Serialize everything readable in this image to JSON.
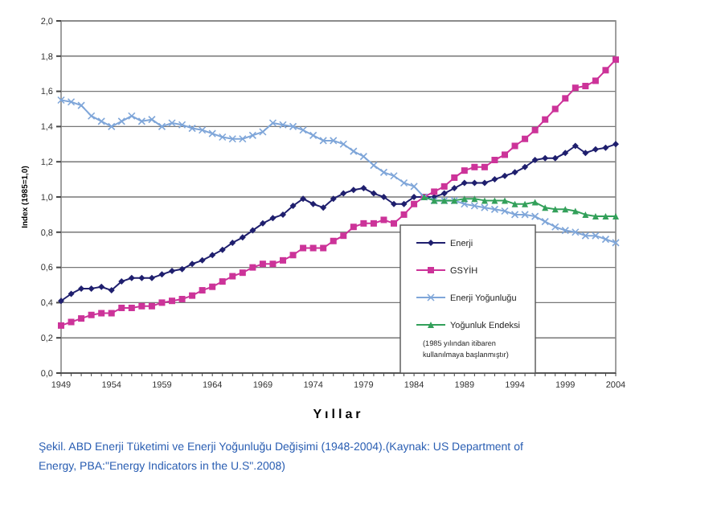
{
  "chart_data": {
    "type": "line",
    "xlabel": "Yıllar",
    "ylabel": "Index (1985=1,0)",
    "x": [
      1949,
      1950,
      1951,
      1952,
      1953,
      1954,
      1955,
      1956,
      1957,
      1958,
      1959,
      1960,
      1961,
      1962,
      1963,
      1964,
      1965,
      1966,
      1967,
      1968,
      1969,
      1970,
      1971,
      1972,
      1973,
      1974,
      1975,
      1976,
      1977,
      1978,
      1979,
      1980,
      1981,
      1982,
      1983,
      1984,
      1985,
      1986,
      1987,
      1988,
      1989,
      1990,
      1991,
      1992,
      1993,
      1994,
      1995,
      1996,
      1997,
      1998,
      1999,
      2000,
      2001,
      2002,
      2003,
      2004
    ],
    "series": [
      {
        "name": "Enerji",
        "color": "#1f1f6e",
        "marker": "diamond",
        "values": [
          0.41,
          0.45,
          0.48,
          0.48,
          0.49,
          0.47,
          0.52,
          0.54,
          0.54,
          0.54,
          0.56,
          0.58,
          0.59,
          0.62,
          0.64,
          0.67,
          0.7,
          0.74,
          0.77,
          0.81,
          0.85,
          0.88,
          0.9,
          0.95,
          0.99,
          0.96,
          0.94,
          0.99,
          1.02,
          1.04,
          1.05,
          1.02,
          1.0,
          0.96,
          0.96,
          1.0,
          1.0,
          1.0,
          1.02,
          1.05,
          1.08,
          1.08,
          1.08,
          1.1,
          1.12,
          1.14,
          1.17,
          1.21,
          1.22,
          1.22,
          1.25,
          1.29,
          1.25,
          1.27,
          1.28,
          1.3
        ]
      },
      {
        "name": "GSYİH",
        "color": "#cc3399",
        "marker": "square",
        "values": [
          0.27,
          0.29,
          0.31,
          0.33,
          0.34,
          0.34,
          0.37,
          0.37,
          0.38,
          0.38,
          0.4,
          0.41,
          0.42,
          0.44,
          0.47,
          0.49,
          0.52,
          0.55,
          0.57,
          0.6,
          0.62,
          0.62,
          0.64,
          0.67,
          0.71,
          0.71,
          0.71,
          0.75,
          0.78,
          0.83,
          0.85,
          0.85,
          0.87,
          0.85,
          0.9,
          0.96,
          1.0,
          1.03,
          1.06,
          1.11,
          1.15,
          1.17,
          1.17,
          1.21,
          1.24,
          1.29,
          1.33,
          1.38,
          1.44,
          1.5,
          1.56,
          1.62,
          1.63,
          1.66,
          1.72,
          1.78
        ]
      },
      {
        "name": "Enerji Yoğunluğu",
        "color": "#7fa6d9",
        "marker": "cross",
        "values": [
          1.55,
          1.54,
          1.52,
          1.46,
          1.43,
          1.4,
          1.43,
          1.46,
          1.43,
          1.44,
          1.4,
          1.42,
          1.41,
          1.39,
          1.38,
          1.36,
          1.34,
          1.33,
          1.33,
          1.35,
          1.37,
          1.42,
          1.41,
          1.4,
          1.38,
          1.35,
          1.32,
          1.32,
          1.3,
          1.26,
          1.23,
          1.18,
          1.14,
          1.12,
          1.08,
          1.06,
          1.0,
          0.98,
          0.98,
          0.98,
          0.96,
          0.95,
          0.94,
          0.93,
          0.92,
          0.9,
          0.9,
          0.89,
          0.86,
          0.83,
          0.81,
          0.8,
          0.78,
          0.78,
          0.76,
          0.74
        ]
      },
      {
        "name": "Yoğunluk Endeksi",
        "color": "#33a05a",
        "marker": "triangle",
        "x": [
          1985,
          1986,
          1987,
          1988,
          1989,
          1990,
          1991,
          1992,
          1993,
          1994,
          1995,
          1996,
          1997,
          1998,
          1999,
          2000,
          2001,
          2002,
          2003,
          2004
        ],
        "values": [
          1.0,
          0.98,
          0.98,
          0.98,
          0.99,
          0.99,
          0.98,
          0.98,
          0.98,
          0.96,
          0.96,
          0.97,
          0.94,
          0.93,
          0.93,
          0.92,
          0.9,
          0.89,
          0.89,
          0.89
        ]
      }
    ],
    "xlim": [
      1949,
      2004
    ],
    "xticks": [
      1949,
      1954,
      1959,
      1964,
      1969,
      1974,
      1979,
      1984,
      1989,
      1994,
      1999,
      2004
    ],
    "ylim": [
      0,
      2
    ],
    "yticks": [
      {
        "value": 0,
        "label": "0,0"
      },
      {
        "value": 0.2,
        "label": "0,2"
      },
      {
        "value": 0.4,
        "label": "0,4"
      },
      {
        "value": 0.6,
        "label": "0,6"
      },
      {
        "value": 0.8,
        "label": "0,8"
      },
      {
        "value": 1,
        "label": "1,0"
      },
      {
        "value": 1.2,
        "label": "1,2"
      },
      {
        "value": 1.4,
        "label": "1,4"
      },
      {
        "value": 1.6,
        "label": "1,6"
      },
      {
        "value": 1.8,
        "label": "1,8"
      },
      {
        "value": 2,
        "label": "2,0"
      }
    ],
    "grid": "y",
    "legend": "bottom right",
    "line_style": "solid",
    "annotations": [
      "(1985 yılından itibaren kullanılmaya başlanmıştır)",
      "Şekil. ABD Enerji Tüketimi ve Enerji Yoğunluğu Değişimi (1948-2004).(Kaynak: US Department of Energy, PBA:\"Energy Indicators in the U.S\".2008)"
    ]
  }
}
